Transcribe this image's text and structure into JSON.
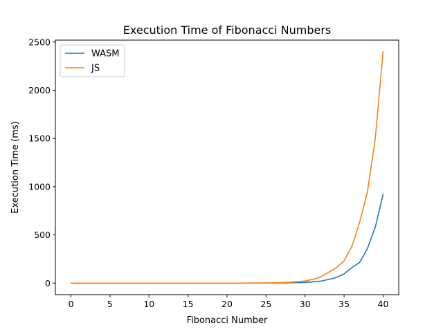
{
  "chart_data": {
    "type": "line",
    "title": "Execution Time of Fibonacci Numbers",
    "xlabel": "Fibonacci Number",
    "ylabel": "Execution Time (ms)",
    "xlim": [
      -2,
      42
    ],
    "ylim": [
      -120,
      2520
    ],
    "xticks": [
      0,
      5,
      10,
      15,
      20,
      25,
      30,
      35,
      40
    ],
    "yticks": [
      0,
      500,
      1000,
      1500,
      2000,
      2500
    ],
    "grid": false,
    "legend": "top-left",
    "x": [
      0,
      1,
      2,
      3,
      4,
      5,
      6,
      7,
      8,
      9,
      10,
      11,
      12,
      13,
      14,
      15,
      16,
      17,
      18,
      19,
      20,
      21,
      22,
      23,
      24,
      25,
      26,
      27,
      28,
      29,
      30,
      31,
      32,
      33,
      34,
      35,
      36,
      37,
      38,
      39,
      40
    ],
    "series": [
      {
        "name": "WASM",
        "color": "#1f77b4",
        "values": [
          0,
          0,
          0,
          0,
          0,
          0,
          0,
          0,
          0,
          0,
          0,
          0,
          0,
          0,
          0,
          0,
          0,
          0,
          0,
          0,
          0,
          0,
          0,
          0,
          0,
          1,
          1,
          2,
          3,
          4,
          7,
          12,
          20,
          38,
          58,
          95,
          160,
          215,
          360,
          580,
          920
        ]
      },
      {
        "name": "JS",
        "color": "#ff7f0e",
        "values": [
          0,
          0,
          0,
          0,
          0,
          0,
          0,
          0,
          0,
          0,
          0,
          0,
          0,
          0,
          0,
          0,
          0,
          0,
          0,
          0,
          0,
          0,
          0,
          1,
          1,
          2,
          3,
          5,
          8,
          14,
          22,
          38,
          65,
          110,
          160,
          230,
          380,
          630,
          950,
          1500,
          2400
        ]
      }
    ]
  }
}
